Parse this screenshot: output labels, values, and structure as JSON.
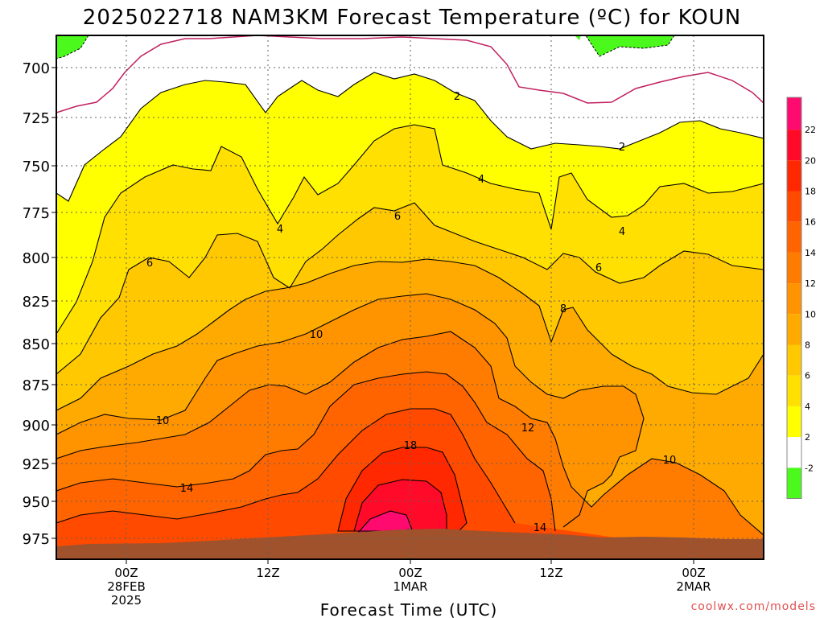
{
  "chart_data": {
    "type": "heatmap",
    "title": "2025022718 NAM3KM Forecast Temperature (ºC) for KOUN",
    "xlabel": "Forecast Time (UTC)",
    "ylabel": "",
    "y_ticks": [
      "700",
      "725",
      "750",
      "775",
      "800",
      "825",
      "850",
      "875",
      "900",
      "925",
      "950",
      "975"
    ],
    "x_ticks": [
      {
        "line1": "00Z",
        "line2": "28FEB",
        "line3": "2025"
      },
      {
        "line1": "12Z",
        "line2": "",
        "line3": ""
      },
      {
        "line1": "00Z",
        "line2": "1MAR",
        "line3": ""
      },
      {
        "line1": "12Z",
        "line2": "",
        "line3": ""
      },
      {
        "line1": "00Z",
        "line2": "2MAR",
        "line3": ""
      }
    ],
    "colorbar": {
      "labels": [
        "22",
        "20",
        "18",
        "16",
        "14",
        "12",
        "10",
        "8",
        "6",
        "4",
        "2",
        "-2"
      ],
      "colors": {
        "lt_-2": "#4cf91c",
        "-2_2": "#ffffff",
        "2_4": "#ffff00",
        "4_6": "#ffe000",
        "6_8": "#ffc800",
        "8_10": "#ffaa00",
        "10_12": "#ff9400",
        "12_14": "#ff7c00",
        "14_16": "#ff6400",
        "16_18": "#ff4a00",
        "18_20": "#ff2800",
        "20_22": "#ff0a28",
        "gt_22": "#ff0a6e"
      }
    },
    "contour_labels": [
      "2",
      "2",
      "4",
      "4",
      "4",
      "6",
      "6",
      "6",
      "8",
      "10",
      "10",
      "10",
      "12",
      "14",
      "14",
      "18"
    ],
    "terrain_color": "#a0522d"
  },
  "credit": "coolwx.com/models"
}
